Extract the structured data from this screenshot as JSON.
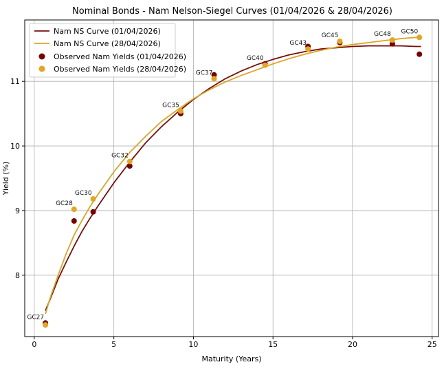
{
  "chart_data": {
    "type": "line",
    "title": "Nominal Bonds - Nam Nelson-Siegel Curves (01/04/2026 & 28/04/2026)",
    "xlabel": "Maturity (Years)",
    "ylabel": "Yield (%)",
    "xlim": [
      -0.6,
      25.4
    ],
    "ylim": [
      7.05,
      11.95
    ],
    "xticks": [
      0,
      5,
      10,
      15,
      20,
      25
    ],
    "yticks": [
      8,
      9,
      10,
      11
    ],
    "grid": true,
    "legend_position": "upper-left",
    "colors": {
      "curve_0104": "#7a0c0c",
      "curve_2804": "#daa520",
      "obs_0104": "#7a0000",
      "obs_2804": "#e5a520"
    },
    "series": [
      {
        "name": "Nam NS Curve (01/04/2026)",
        "kind": "line",
        "color": "#7a0c0c",
        "x": [
          0.7,
          1,
          1.5,
          2,
          2.5,
          3,
          3.5,
          4,
          5,
          6,
          7,
          8,
          9,
          10,
          11,
          12,
          13,
          14,
          15,
          16,
          17,
          18,
          19,
          20,
          21,
          22,
          23,
          24,
          24.3
        ],
        "y": [
          7.45,
          7.63,
          7.94,
          8.2,
          8.45,
          8.68,
          8.88,
          9.07,
          9.43,
          9.75,
          10.05,
          10.3,
          10.52,
          10.72,
          10.89,
          11.04,
          11.16,
          11.26,
          11.34,
          11.41,
          11.46,
          11.5,
          11.52,
          11.54,
          11.55,
          11.55,
          11.55,
          11.54,
          11.54
        ]
      },
      {
        "name": "Nam NS Curve (28/04/2026)",
        "kind": "line",
        "color": "#daa520",
        "x": [
          0.7,
          1,
          1.5,
          2,
          2.5,
          3,
          3.5,
          4,
          5,
          6,
          7,
          8,
          9,
          10,
          11,
          12,
          13,
          14,
          15,
          16,
          17,
          18,
          19,
          20,
          21,
          22,
          23,
          24,
          24.3
        ],
        "y": [
          7.4,
          7.65,
          8.0,
          8.33,
          8.62,
          8.85,
          9.06,
          9.25,
          9.6,
          9.9,
          10.15,
          10.38,
          10.56,
          10.73,
          10.87,
          10.99,
          11.09,
          11.18,
          11.27,
          11.35,
          11.42,
          11.48,
          11.53,
          11.57,
          11.6,
          11.63,
          11.66,
          11.68,
          11.69
        ]
      },
      {
        "name": "Observed Nam Yields (01/04/2026)",
        "kind": "scatter",
        "color": "#7a0000",
        "x": [
          0.7,
          2.5,
          3.7,
          6.0,
          9.2,
          11.3,
          14.5,
          17.2,
          19.2,
          22.5,
          24.2
        ],
        "y": [
          7.26,
          8.84,
          8.98,
          9.69,
          10.5,
          11.1,
          11.27,
          11.54,
          11.6,
          11.58,
          11.42
        ]
      },
      {
        "name": "Observed Nam Yields (28/04/2026)",
        "kind": "scatter",
        "color": "#e5a520",
        "x": [
          0.7,
          2.5,
          3.7,
          6.0,
          9.2,
          11.3,
          14.5,
          17.2,
          19.2,
          22.5,
          24.2
        ],
        "y": [
          7.23,
          9.02,
          9.18,
          9.76,
          10.54,
          11.04,
          11.25,
          11.5,
          11.62,
          11.64,
          11.68
        ]
      }
    ],
    "annotations": [
      {
        "text": "GC27",
        "x": 0.7,
        "y": 7.26
      },
      {
        "text": "GC28",
        "x": 2.5,
        "y": 9.02
      },
      {
        "text": "GC30",
        "x": 3.7,
        "y": 9.18
      },
      {
        "text": "GC32",
        "x": 6.0,
        "y": 9.76
      },
      {
        "text": "GC35",
        "x": 9.2,
        "y": 10.54
      },
      {
        "text": "GC37",
        "x": 11.3,
        "y": 11.04
      },
      {
        "text": "GC40",
        "x": 14.5,
        "y": 11.27
      },
      {
        "text": "GC43",
        "x": 17.2,
        "y": 11.5
      },
      {
        "text": "GC45",
        "x": 19.2,
        "y": 11.62
      },
      {
        "text": "GC48",
        "x": 22.5,
        "y": 11.64
      },
      {
        "text": "GC50",
        "x": 24.2,
        "y": 11.68
      }
    ]
  }
}
